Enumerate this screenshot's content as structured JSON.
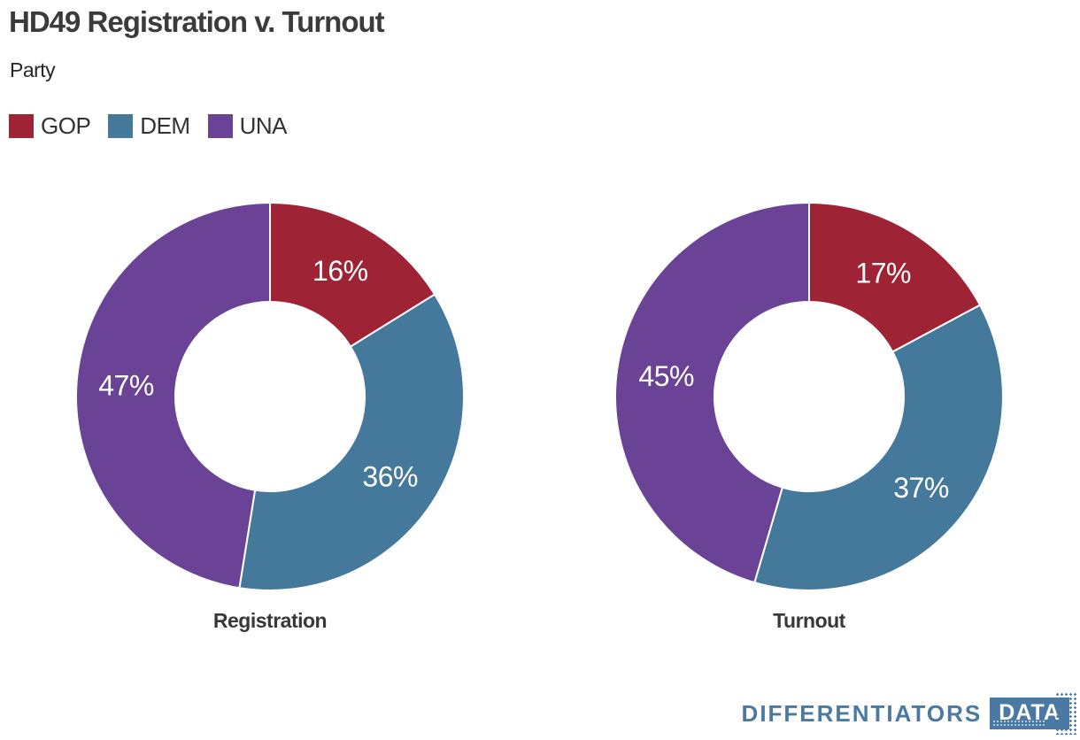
{
  "header": {
    "title": "HD49 Registration v. Turnout",
    "subtitle": "Party"
  },
  "legend": {
    "position": "top-left",
    "items": [
      {
        "label": "GOP",
        "color": "#9e2335"
      },
      {
        "label": "DEM",
        "color": "#45799c"
      },
      {
        "label": "UNA",
        "color": "#6a4397"
      }
    ]
  },
  "chart_data": [
    {
      "type": "pie",
      "subtype": "donut",
      "title": "Registration",
      "categories": [
        "GOP",
        "DEM",
        "UNA"
      ],
      "values": [
        16,
        36,
        47
      ],
      "labels": [
        "16%",
        "36%",
        "47%"
      ],
      "colors": [
        "#9e2335",
        "#45799c",
        "#6a4397"
      ],
      "unit": "%",
      "start_angle_deg": 0,
      "direction": "clockwise",
      "hole_ratio": 0.49,
      "separator_color": "#ffffff"
    },
    {
      "type": "pie",
      "subtype": "donut",
      "title": "Turnout",
      "categories": [
        "GOP",
        "DEM",
        "UNA"
      ],
      "values": [
        17,
        37,
        45
      ],
      "labels": [
        "17%",
        "37%",
        "45%"
      ],
      "colors": [
        "#9e2335",
        "#45799c",
        "#6a4397"
      ],
      "unit": "%",
      "start_angle_deg": 0,
      "direction": "clockwise",
      "hole_ratio": 0.49,
      "separator_color": "#ffffff"
    }
  ],
  "footer": {
    "brand": "DIFFERENTIATORS",
    "brand_badge": "DATA",
    "brand_color": "#4a7aa3"
  }
}
